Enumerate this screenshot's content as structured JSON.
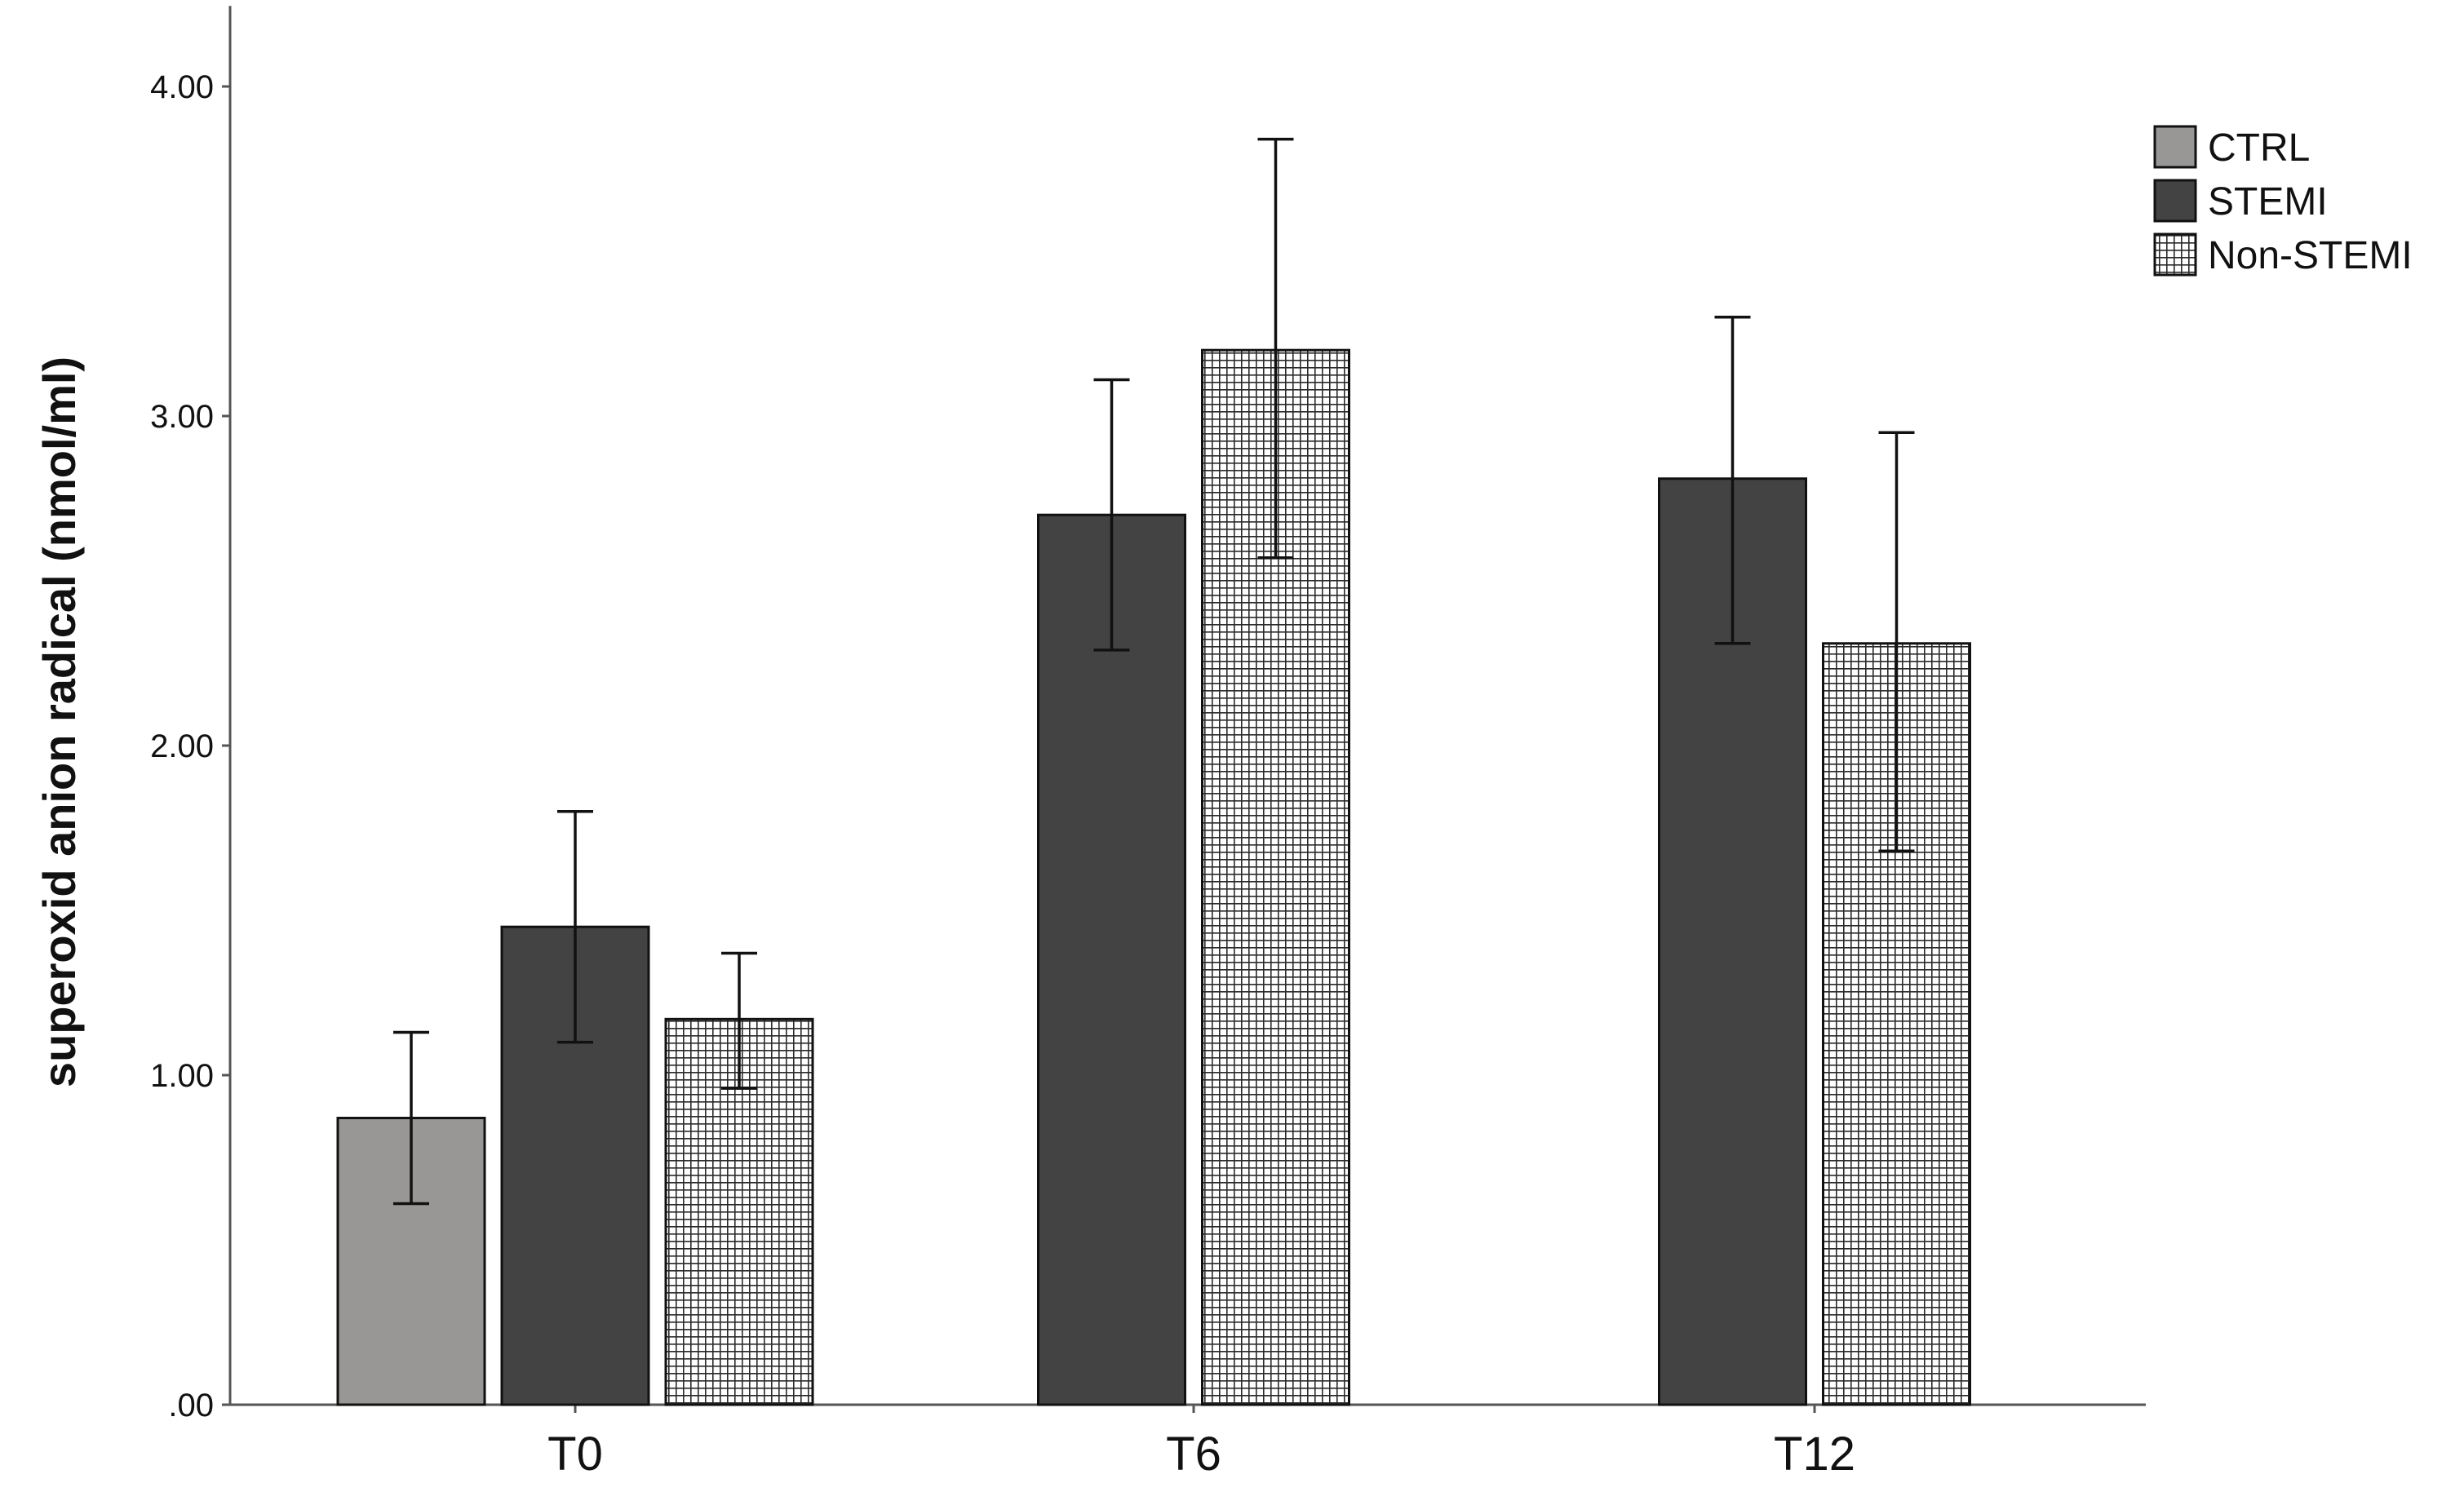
{
  "chart_data": {
    "type": "bar",
    "title": "",
    "xlabel": "",
    "ylabel": "superoxid anion radical (nmol/ml)",
    "ylim": [
      0,
      4.2
    ],
    "yticks": [
      ".00",
      "1.00",
      "2.00",
      "3.00",
      "4.00"
    ],
    "ytick_values": [
      0,
      1,
      2,
      3,
      4
    ],
    "grid": false,
    "legend_position": "top-right",
    "categories": [
      "T0",
      "T6",
      "T12"
    ],
    "series": [
      {
        "name": "CTRL",
        "fill": "#999796",
        "pattern": "solid",
        "values": [
          0.87,
          null,
          null
        ],
        "error_low": [
          0.61,
          null,
          null
        ],
        "error_high": [
          1.13,
          null,
          null
        ]
      },
      {
        "name": "STEMI",
        "fill": "#434344",
        "pattern": "solid",
        "values": [
          1.45,
          2.7,
          2.81
        ],
        "error_low": [
          1.1,
          2.29,
          2.31
        ],
        "error_high": [
          1.8,
          3.11,
          3.3
        ]
      },
      {
        "name": "Non-STEMI",
        "fill": "#ffffff",
        "pattern": "grid",
        "values": [
          1.17,
          3.2,
          2.31
        ],
        "error_low": [
          0.96,
          2.57,
          1.68
        ],
        "error_high": [
          1.37,
          3.84,
          2.95
        ]
      }
    ]
  }
}
